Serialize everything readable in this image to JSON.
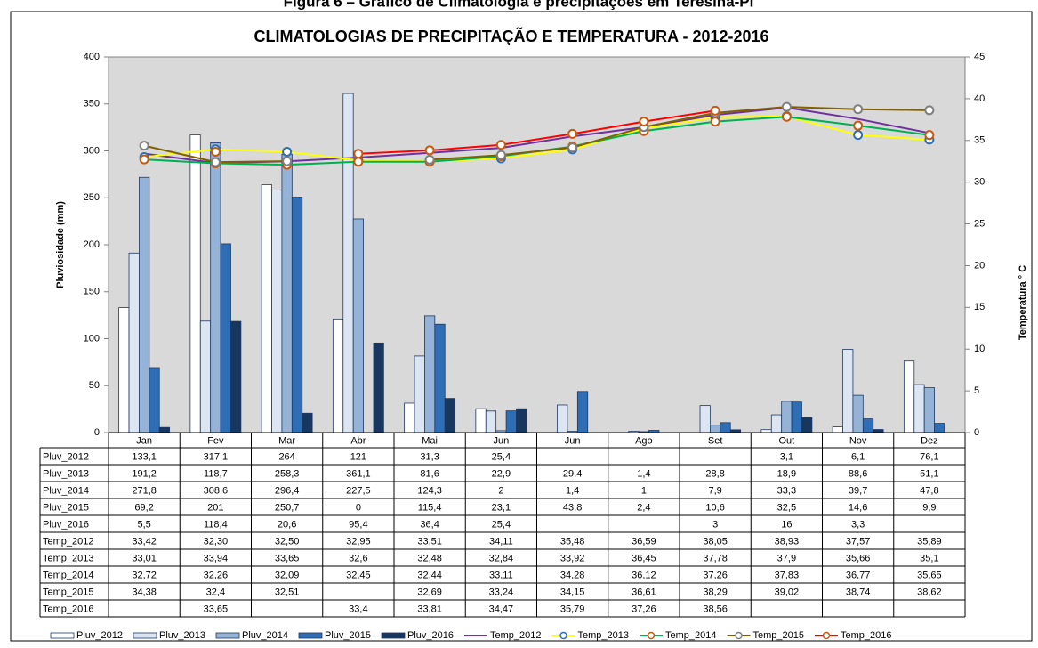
{
  "caption": "Figura 6 – Gráfico de Climatologia e precipitações em Teresina-PI",
  "chart_data": {
    "type": "bar",
    "title": "CLIMATOLOGIAS  DE PRECIPITAÇÃO  E TEMPERATURA  - 2012-2016",
    "y_label": "Pluviosidade  (mm)",
    "y2_label": "Temperatura ° C",
    "categories": [
      "Jan",
      "Fev",
      "Mar",
      "Abr",
      "Mai",
      "Jun",
      "Jun",
      "Ago",
      "Set",
      "Out",
      "Nov",
      "Dez"
    ],
    "ylim": [
      0,
      400
    ],
    "yticks": [
      0,
      50,
      100,
      150,
      200,
      250,
      300,
      350,
      400
    ],
    "y2lim": [
      0,
      45
    ],
    "y2ticks": [
      0,
      5,
      10,
      15,
      20,
      25,
      30,
      35,
      40,
      45
    ],
    "series": [
      {
        "name": "Pluv_2012",
        "type": "bar",
        "color": "#ffffff",
        "values": [
          133.1,
          317.1,
          264,
          121,
          31.3,
          25.4,
          null,
          null,
          null,
          3.1,
          6.1,
          76.1
        ],
        "value_labels": [
          "133,1",
          "317,1",
          "264",
          "121",
          "31,3",
          "25,4",
          null,
          null,
          null,
          "3,1",
          "6,1",
          "76,1"
        ]
      },
      {
        "name": "Pluv_2013",
        "type": "bar",
        "color": "#dce6f2",
        "values": [
          191.2,
          118.7,
          258.3,
          361.1,
          81.6,
          22.9,
          29.4,
          1.4,
          28.8,
          18.9,
          88.6,
          51.1
        ],
        "value_labels": [
          "191,2",
          "118,7",
          "258,3",
          "361,1",
          "81,6",
          "22,9",
          "29,4",
          "1,4",
          "28,8",
          "18,9",
          "88,6",
          "51,1"
        ]
      },
      {
        "name": "Pluv_2014",
        "type": "bar",
        "color": "#95b3d7",
        "values": [
          271.8,
          308.6,
          296.4,
          227.5,
          124.3,
          2,
          1.4,
          1,
          7.9,
          33.3,
          39.7,
          47.8
        ],
        "value_labels": [
          "271,8",
          "308,6",
          "296,4",
          "227,5",
          "124,3",
          "2",
          "1,4",
          "1",
          "7,9",
          "33,3",
          "39,7",
          "47,8"
        ]
      },
      {
        "name": "Pluv_2015",
        "type": "bar",
        "color": "#2f6eb5",
        "values": [
          69.2,
          201,
          250.7,
          0,
          115.4,
          23.1,
          43.8,
          2.4,
          10.6,
          32.5,
          14.6,
          9.9
        ],
        "value_labels": [
          "69,2",
          "201",
          "250,7",
          "0",
          "115,4",
          "23,1",
          "43,8",
          "2,4",
          "10,6",
          "32,5",
          "14,6",
          "9,9"
        ]
      },
      {
        "name": "Pluv_2016",
        "type": "bar",
        "color": "#17375e",
        "values": [
          5.5,
          118.4,
          20.6,
          95.4,
          36.4,
          25.4,
          null,
          null,
          3,
          16,
          3.3,
          null
        ],
        "value_labels": [
          "5,5",
          "118,4",
          "20,6",
          "95,4",
          "36,4",
          "25,4",
          null,
          null,
          "3",
          "16",
          "3,3",
          null
        ]
      },
      {
        "name": "Temp_2012",
        "type": "line",
        "axis": "y2",
        "color": "#7030a0",
        "marker": null,
        "values": [
          33.42,
          32.3,
          32.5,
          32.95,
          33.51,
          34.11,
          35.48,
          36.59,
          38.05,
          38.93,
          37.57,
          35.89
        ],
        "value_labels": [
          "33,42",
          "32,30",
          "32,50",
          "32,95",
          "33,51",
          "34,11",
          "35,48",
          "36,59",
          "38,05",
          "38,93",
          "37,57",
          "35,89"
        ]
      },
      {
        "name": "Temp_2013",
        "type": "line",
        "axis": "y2",
        "color": "#ffff00",
        "marker": "#2f6eb5",
        "values": [
          33.01,
          33.94,
          33.65,
          32.6,
          32.48,
          32.84,
          33.92,
          36.45,
          37.78,
          37.9,
          35.66,
          35.1
        ],
        "value_labels": [
          "33,01",
          "33,94",
          "33,65",
          "32,6",
          "32,48",
          "32,84",
          "33,92",
          "36,45",
          "37,78",
          "37,9",
          "35,66",
          "35,1"
        ]
      },
      {
        "name": "Temp_2014",
        "type": "line",
        "axis": "y2",
        "color": "#00b050",
        "marker": "#c55a11",
        "values": [
          32.72,
          32.26,
          32.09,
          32.45,
          32.44,
          33.11,
          34.28,
          36.12,
          37.26,
          37.83,
          36.77,
          35.65
        ],
        "value_labels": [
          "32,72",
          "32,26",
          "32,09",
          "32,45",
          "32,44",
          "33,11",
          "34,28",
          "36,12",
          "37,26",
          "37,83",
          "36,77",
          "35,65"
        ]
      },
      {
        "name": "Temp_2015",
        "type": "line",
        "axis": "y2",
        "color": "#806000",
        "marker": "#7f7f7f",
        "values": [
          34.38,
          32.4,
          32.51,
          null,
          32.69,
          33.24,
          34.15,
          36.61,
          38.29,
          39.02,
          38.74,
          38.62
        ],
        "value_labels": [
          "34,38",
          "32,4",
          "32,51",
          null,
          "32,69",
          "33,24",
          "34,15",
          "36,61",
          "38,29",
          "39,02",
          "38,74",
          "38,62"
        ]
      },
      {
        "name": "Temp_2016",
        "type": "line",
        "axis": "y2",
        "color": "#ff0000",
        "marker": "#c55a11",
        "values": [
          null,
          33.65,
          null,
          33.4,
          33.81,
          34.47,
          35.79,
          37.26,
          38.56,
          null,
          null,
          null
        ],
        "value_labels": [
          null,
          "33,65",
          null,
          "33,4",
          "33,81",
          "34,47",
          "35,79",
          "37,26",
          "38,56",
          null,
          null,
          null
        ]
      }
    ]
  }
}
